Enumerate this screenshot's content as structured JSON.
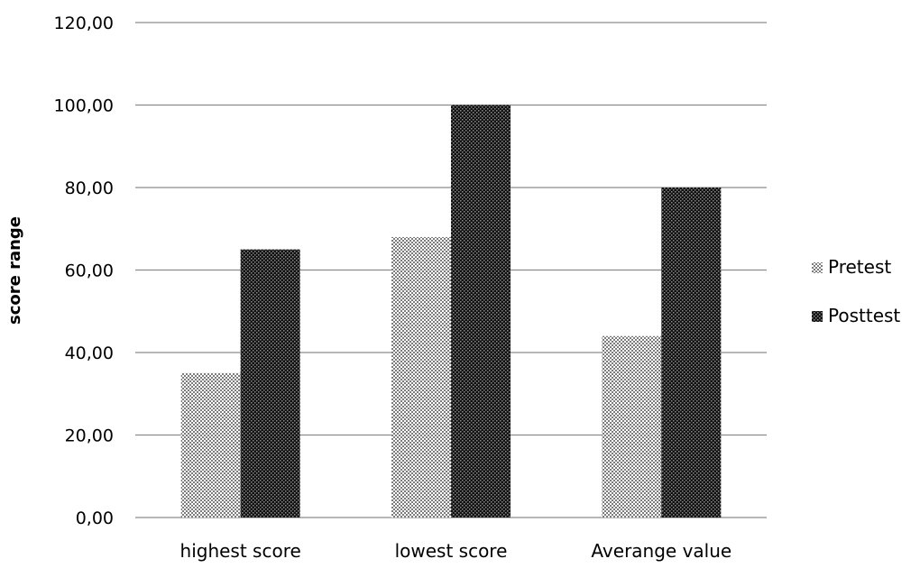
{
  "chart_data": {
    "type": "bar",
    "title": "",
    "xlabel": "",
    "ylabel": "score range",
    "ylim": [
      0,
      120
    ],
    "y_ticks": [
      "0,00",
      "20,00",
      "40,00",
      "60,00",
      "80,00",
      "100,00",
      "120,00"
    ],
    "y_tick_values": [
      0,
      20,
      40,
      60,
      80,
      100,
      120
    ],
    "categories": [
      "highest score",
      "lowest score",
      "Averange value"
    ],
    "series": [
      {
        "name": "Pretest",
        "values": [
          35,
          68,
          44
        ],
        "pattern": "light-crosshatch"
      },
      {
        "name": "Posttest",
        "values": [
          65,
          100,
          80
        ],
        "pattern": "dark-crosshatch"
      }
    ],
    "grid": "horizontal",
    "legend_position": "right"
  },
  "colors": {
    "gridline": "#8c8c8c",
    "pretest_dot": "#8a8a8a",
    "posttest_base": "#1a1a1a",
    "background": "#ffffff"
  }
}
